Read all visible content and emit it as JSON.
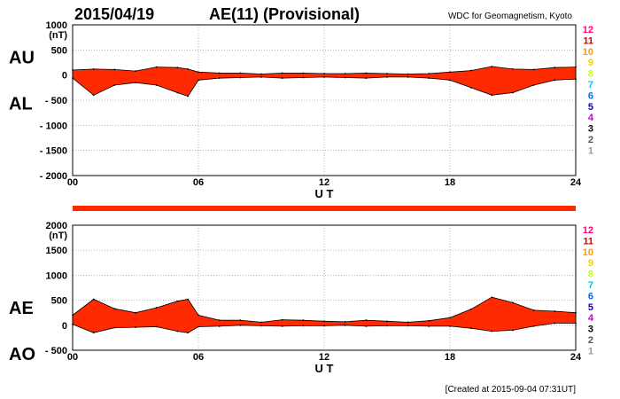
{
  "header": {
    "date": "2015/04/19",
    "title": "AE(11) (Provisional)",
    "source": "WDC for Geomagnetism, Kyoto"
  },
  "footer": {
    "created": "[Created at 2015-09-04 07:31UT]"
  },
  "colors": {
    "fill": "#ff2a00",
    "outline": "#000000",
    "bar": "#ff2a00"
  },
  "chart_data": [
    {
      "type": "area",
      "panel": "upper",
      "y_unit_label": "(nT)",
      "ylabels": {
        "upper": "AU",
        "lower": "AL"
      },
      "xlabel": "U T",
      "xlim": [
        0,
        24
      ],
      "ylim": [
        -2000,
        1000
      ],
      "x_ticks": [
        "00",
        "06",
        "12",
        "18",
        "24"
      ],
      "y_ticks": [
        "1000",
        "500",
        "0",
        "- 500",
        "- 1000",
        "- 1500",
        "- 2000"
      ],
      "level_labels": [
        "12",
        "11",
        "10",
        "9",
        "8",
        "7",
        "6",
        "5",
        "4",
        "3",
        "2",
        "1"
      ],
      "level_colors": [
        "#ff0080",
        "#cc0000",
        "#ff9900",
        "#ffcc00",
        "#ccff00",
        "#00cccc",
        "#0066ff",
        "#0000cc",
        "#cc00cc",
        "#000000",
        "#555555",
        "#999999"
      ],
      "grid": true,
      "x": [
        0,
        1,
        2,
        3,
        4,
        5,
        5.5,
        6,
        7,
        8,
        9,
        10,
        11,
        12,
        13,
        14,
        15,
        16,
        17,
        18,
        19,
        20,
        21,
        22,
        23,
        24
      ],
      "series": [
        {
          "values": [
            100,
            120,
            110,
            80,
            160,
            150,
            120,
            60,
            40,
            40,
            20,
            40,
            40,
            30,
            30,
            40,
            30,
            20,
            30,
            60,
            90,
            170,
            120,
            110,
            150,
            160
          ]
        },
        {
          "values": [
            -60,
            -400,
            -200,
            -150,
            -200,
            -350,
            -420,
            -100,
            -60,
            -50,
            -40,
            -60,
            -50,
            -40,
            -50,
            -60,
            -40,
            -40,
            -60,
            -100,
            -250,
            -400,
            -350,
            -200,
            -100,
            -80
          ]
        }
      ]
    },
    {
      "type": "area",
      "panel": "lower",
      "y_unit_label": "(nT)",
      "ylabels": {
        "upper": "AE",
        "lower": "AO"
      },
      "xlabel": "U T",
      "xlim": [
        0,
        24
      ],
      "ylim": [
        -500,
        2000
      ],
      "x_ticks": [
        "00",
        "06",
        "12",
        "18",
        "24"
      ],
      "y_ticks": [
        "2000",
        "1500",
        "1000",
        "500",
        "0",
        "- 500"
      ],
      "level_labels": [
        "12",
        "11",
        "10",
        "9",
        "8",
        "7",
        "6",
        "5",
        "4",
        "3",
        "2",
        "1"
      ],
      "level_colors": [
        "#ff0080",
        "#cc0000",
        "#ff9900",
        "#ffcc00",
        "#ccff00",
        "#00cccc",
        "#0066ff",
        "#0000cc",
        "#cc00cc",
        "#000000",
        "#555555",
        "#999999"
      ],
      "grid": true,
      "x": [
        0,
        1,
        2,
        3,
        4,
        5,
        5.5,
        6,
        7,
        8,
        9,
        10,
        11,
        12,
        13,
        14,
        15,
        16,
        17,
        18,
        19,
        20,
        21,
        22,
        23,
        24
      ],
      "series": [
        {
          "values": [
            200,
            520,
            330,
            250,
            350,
            480,
            520,
            200,
            100,
            100,
            60,
            110,
            100,
            80,
            70,
            100,
            80,
            60,
            90,
            150,
            320,
            560,
            450,
            300,
            280,
            250
          ]
        },
        {
          "values": [
            20,
            -150,
            -50,
            -40,
            -30,
            -120,
            -150,
            -30,
            -20,
            0,
            -10,
            -20,
            -10,
            -10,
            0,
            -20,
            -10,
            -10,
            -20,
            -20,
            -60,
            -120,
            -100,
            -20,
            40,
            40
          ]
        }
      ]
    }
  ]
}
